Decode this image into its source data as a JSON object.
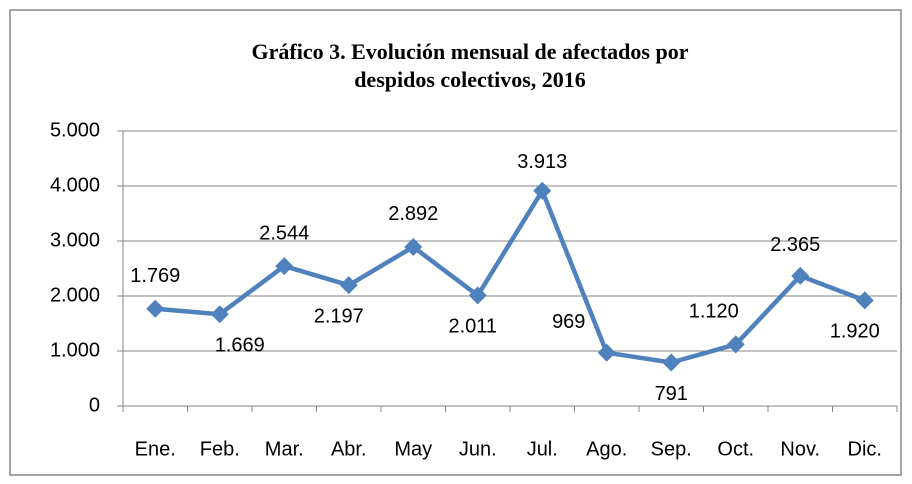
{
  "chart_data": {
    "type": "line",
    "title": "Gráfico 3. Evolución mensual de afectados por despidos colectivos, 2016",
    "categories": [
      "Ene.",
      "Feb.",
      "Mar.",
      "Abr.",
      "May",
      "Jun.",
      "Jul.",
      "Ago.",
      "Sep.",
      "Oct.",
      "Nov.",
      "Dic."
    ],
    "series": [
      {
        "name": "Afectados",
        "color": "#4f81bd",
        "values": [
          1769,
          1669,
          2544,
          2197,
          2892,
          2011,
          3913,
          969,
          791,
          1120,
          2365,
          1920
        ],
        "value_labels": [
          "1.769",
          "1.669",
          "2.544",
          "2.197",
          "2.892",
          "2.011",
          "3.913",
          "969",
          "791",
          "1.120",
          "2.365",
          "1.920"
        ]
      }
    ],
    "ylim": [
      0,
      5000
    ],
    "yticks": [
      0,
      {
        "value": 1000,
        "label": "1.000"
      },
      {
        "value": 2000,
        "label": "2.000"
      },
      {
        "value": 3000,
        "label": "3.000"
      },
      {
        "value": 4000,
        "label": "4.000"
      },
      {
        "value": 5000,
        "label": "5.000"
      }
    ],
    "grid": true
  }
}
